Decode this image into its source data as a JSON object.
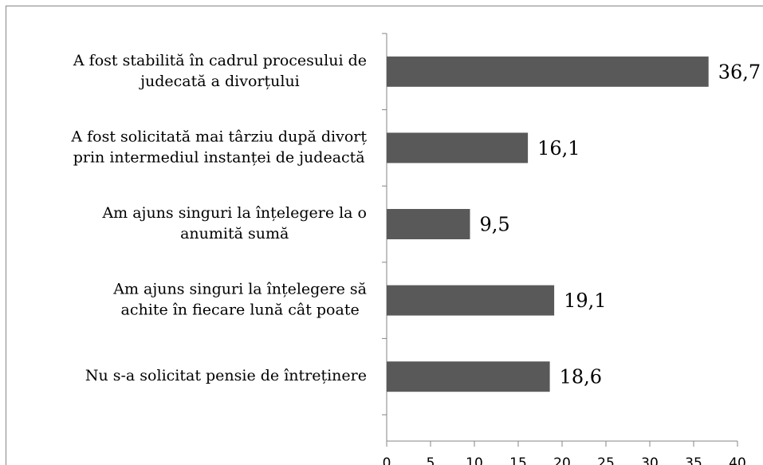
{
  "chart_data": {
    "type": "bar",
    "orientation": "horizontal",
    "categories": [
      "A fost stabilită în cadrul procesului de\njudecată a divorțului",
      "A fost solicitată mai târziu după divorț\nprin intermediul instanței de judeactă",
      "Am ajuns singuri la înțelegere la o\nanumită sumă",
      "Am ajuns singuri la înțelegere să\nachite în fiecare lună cât poate",
      "Nu s-a solicitat pensie de întreținere"
    ],
    "values": [
      36.7,
      16.1,
      9.5,
      19.1,
      18.6
    ],
    "value_labels": [
      "36,7",
      "16,1",
      "9,5",
      "19,1",
      "18,6"
    ],
    "color": "#595959",
    "xlim": [
      0,
      40
    ],
    "xticks": [
      0,
      5,
      10,
      15,
      20,
      25,
      30,
      35,
      40
    ]
  }
}
